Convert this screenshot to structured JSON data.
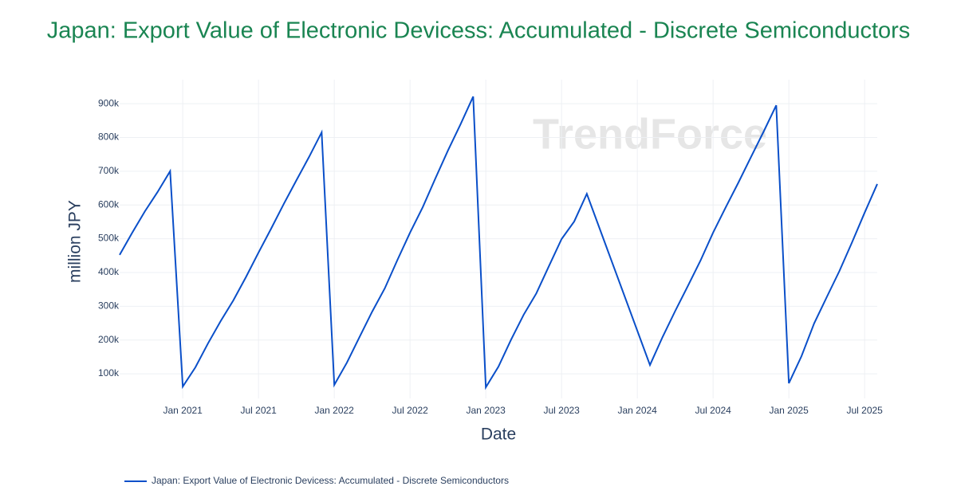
{
  "chart_data": {
    "type": "line",
    "title": "Japan: Export Value of Electronic Devicess: Accumulated - Discrete Semiconductors",
    "watermark": "TrendForce",
    "x_label": "Date",
    "y_label": "million JPY",
    "x": [
      "2020-08",
      "2020-09",
      "2020-10",
      "2020-11",
      "2020-12",
      "2021-01",
      "2021-02",
      "2021-03",
      "2021-04",
      "2021-05",
      "2021-06",
      "2021-07",
      "2021-08",
      "2021-09",
      "2021-10",
      "2021-11",
      "2021-12",
      "2022-01",
      "2022-02",
      "2022-03",
      "2022-04",
      "2022-05",
      "2022-06",
      "2022-07",
      "2022-08",
      "2022-09",
      "2022-10",
      "2022-11",
      "2022-12",
      "2023-01",
      "2023-02",
      "2023-03",
      "2023-04",
      "2023-05",
      "2023-06",
      "2023-07",
      "2023-08",
      "2023-09",
      "2024-02",
      "2024-03",
      "2024-04",
      "2024-05",
      "2024-06",
      "2024-07",
      "2024-08",
      "2024-09",
      "2024-10",
      "2024-11",
      "2024-12",
      "2025-01",
      "2025-02",
      "2025-03",
      "2025-04",
      "2025-05",
      "2025-06",
      "2025-07",
      "2025-08"
    ],
    "series": [
      {
        "name": "Japan: Export Value of Electronic Devicess: Accumulated - Discrete Semiconductors",
        "color": "#0a4fc9",
        "values": [
          452000,
          518000,
          581000,
          638000,
          700000,
          62000,
          119000,
          190000,
          256000,
          317000,
          386000,
          459000,
          530000,
          603000,
          673000,
          742000,
          815000,
          67000,
          133000,
          209000,
          284000,
          353000,
          437000,
          518000,
          593000,
          678000,
          761000,
          839000,
          921000,
          60000,
          121000,
          201000,
          275000,
          338000,
          419000,
          499000,
          551000,
          633000,
          126000,
          209000,
          286000,
          360000,
          435000,
          518000,
          593000,
          666000,
          742000,
          817000,
          895000,
          72000,
          152000,
          249000,
          327000,
          404000,
          489000,
          577000,
          662000
        ]
      }
    ],
    "xlim": [
      "2020-08",
      "2025-08"
    ],
    "xticks": [
      {
        "value": "2021-01",
        "label": "Jan 2021"
      },
      {
        "value": "2021-07",
        "label": "Jul 2021"
      },
      {
        "value": "2022-01",
        "label": "Jan 2022"
      },
      {
        "value": "2022-07",
        "label": "Jul 2022"
      },
      {
        "value": "2023-01",
        "label": "Jan 2023"
      },
      {
        "value": "2023-07",
        "label": "Jul 2023"
      },
      {
        "value": "2024-01",
        "label": "Jan 2024"
      },
      {
        "value": "2024-07",
        "label": "Jul 2024"
      },
      {
        "value": "2025-01",
        "label": "Jan 2025"
      },
      {
        "value": "2025-07",
        "label": "Jul 2025"
      }
    ],
    "ylim": [
      27000,
      971000
    ],
    "yticks": [
      {
        "value": 100000,
        "label": "100k"
      },
      {
        "value": 200000,
        "label": "200k"
      },
      {
        "value": 300000,
        "label": "300k"
      },
      {
        "value": 400000,
        "label": "400k"
      },
      {
        "value": 500000,
        "label": "500k"
      },
      {
        "value": 600000,
        "label": "600k"
      },
      {
        "value": 700000,
        "label": "700k"
      },
      {
        "value": 800000,
        "label": "800k"
      },
      {
        "value": 900000,
        "label": "900k"
      }
    ],
    "grid": true,
    "legend": "bottom-left"
  }
}
